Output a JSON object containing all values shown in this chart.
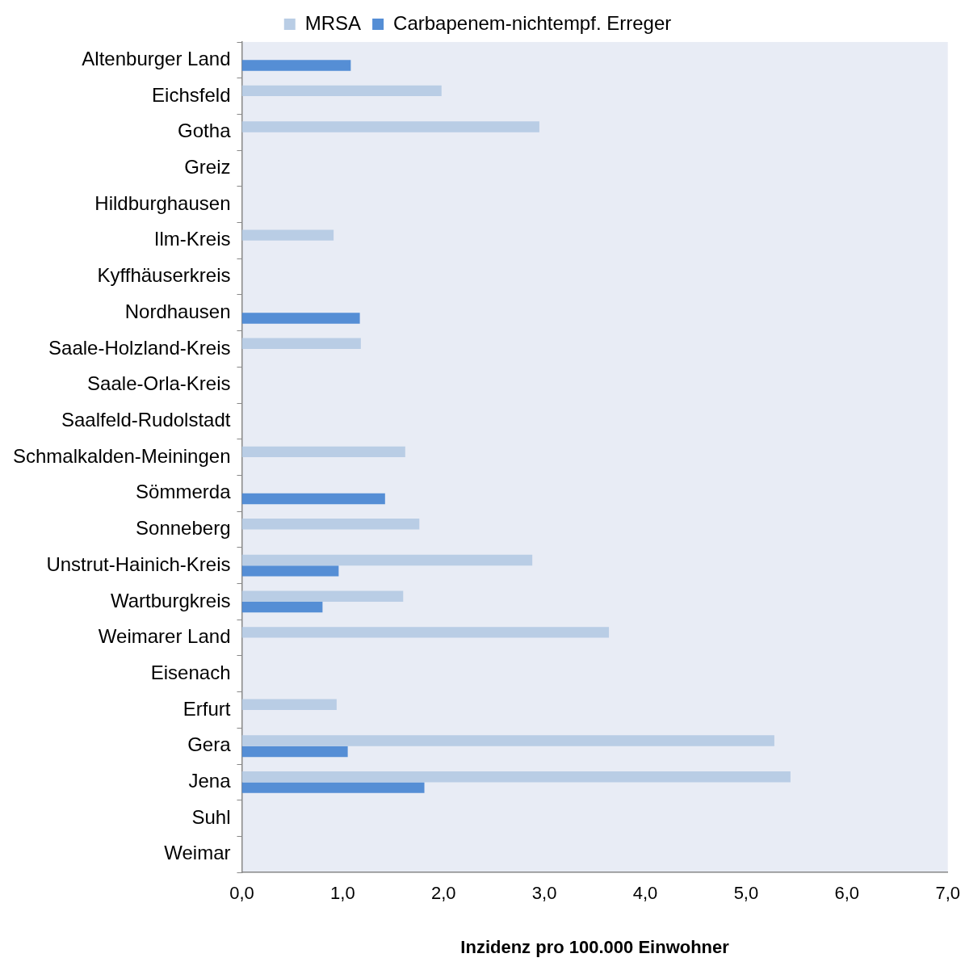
{
  "chart_data": {
    "type": "bar",
    "orientation": "horizontal",
    "xlabel": "Inzidenz pro 100.000 Einwohner",
    "categories": [
      "Altenburger Land",
      "Eichsfeld",
      "Gotha",
      "Greiz",
      "Hildburghausen",
      "Ilm-Kreis",
      "Kyffhäuserkreis",
      "Nordhausen",
      "Saale-Holzland-Kreis",
      "Saale-Orla-Kreis",
      "Saalfeld-Rudolstadt",
      "Schmalkalden-Meiningen",
      "Sömmerda",
      "Sonneberg",
      "Unstrut-Hainich-Kreis",
      "Wartburgkreis",
      "Weimarer Land",
      "Eisenach",
      "Erfurt",
      "Gera",
      "Jena",
      "Suhl",
      "Weimar"
    ],
    "series": [
      {
        "name": "MRSA",
        "color": "#b9cde5",
        "values": [
          null,
          1.98,
          2.95,
          null,
          null,
          0.91,
          null,
          null,
          1.18,
          null,
          null,
          1.62,
          null,
          1.76,
          2.88,
          1.6,
          3.64,
          null,
          0.94,
          5.28,
          5.44,
          null,
          null
        ]
      },
      {
        "name": "Carbapenem-nichtempf. Erreger",
        "color": "#558ed5",
        "values": [
          1.08,
          null,
          null,
          null,
          null,
          null,
          null,
          1.17,
          null,
          null,
          null,
          null,
          1.42,
          null,
          0.96,
          0.8,
          null,
          null,
          null,
          1.05,
          1.81,
          null,
          null
        ]
      }
    ],
    "xlim": [
      0,
      7
    ],
    "xticks": [
      {
        "value": 0,
        "label": "0,0"
      },
      {
        "value": 1,
        "label": "1,0"
      },
      {
        "value": 2,
        "label": "2,0"
      },
      {
        "value": 3,
        "label": "3,0"
      },
      {
        "value": 4,
        "label": "4,0"
      },
      {
        "value": 5,
        "label": "5,0"
      },
      {
        "value": 6,
        "label": "6,0"
      },
      {
        "value": 7,
        "label": "7,0"
      }
    ],
    "grid": false,
    "legend": "top"
  }
}
